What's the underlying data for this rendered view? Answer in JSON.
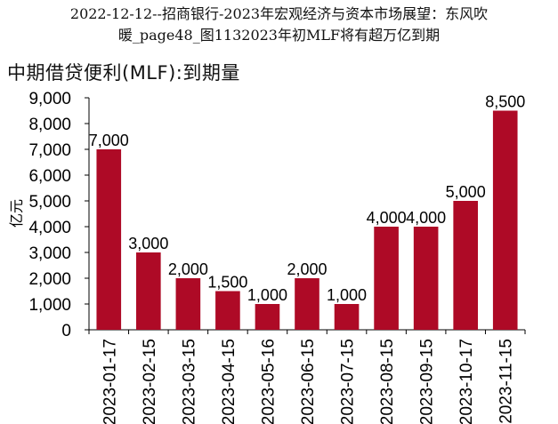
{
  "header": {
    "title_line1": "2022-12-12--招商银行-2023年宏观经济与资本市场展望：东风吹",
    "title_line2": "暖_page48_图1132023年初MLF将有超万亿到期"
  },
  "chart_data": {
    "type": "bar",
    "title": "中期借贷便利(MLF):到期量",
    "ylabel": "亿元",
    "xlabel": "",
    "ylim": [
      0,
      9000
    ],
    "yticks": [
      "0",
      "1,000",
      "2,000",
      "3,000",
      "4,000",
      "5,000",
      "6,000",
      "7,000",
      "8,000",
      "9,000"
    ],
    "categories": [
      "2023-01-17",
      "2023-02-15",
      "2023-03-15",
      "2023-04-15",
      "2023-05-16",
      "2023-06-15",
      "2023-07-15",
      "2023-08-15",
      "2023-09-15",
      "2023-10-17",
      "2023-11-15"
    ],
    "values": [
      7000,
      3000,
      2000,
      1500,
      1000,
      2000,
      1000,
      4000,
      4000,
      5000,
      8500
    ],
    "value_labels": [
      "7,000",
      "3,000",
      "2,000",
      "1,500",
      "1,000",
      "2,000",
      "1,000",
      "4,000",
      "4,000",
      "5,000",
      "8,500"
    ],
    "bar_color": "#ae0a26",
    "grid": false,
    "legend": "none"
  }
}
